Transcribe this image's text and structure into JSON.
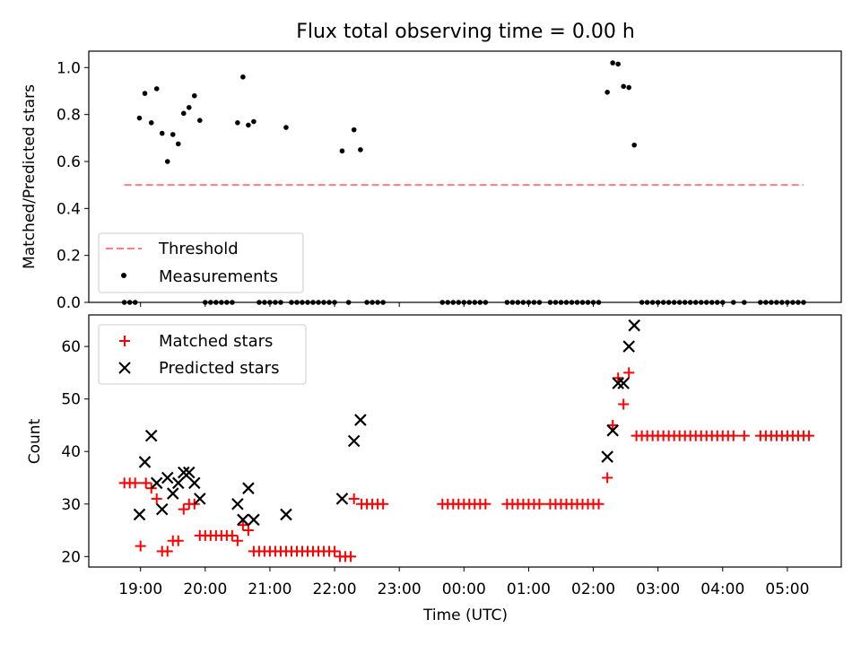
{
  "chart_data": [
    {
      "type": "scatter",
      "title": "Flux total observing time = 0.00 h",
      "xlabel": "",
      "ylabel": "Matched/Predicted stars",
      "ylim": [
        0,
        1.07
      ],
      "xlim": [
        "18:12",
        "05:50"
      ],
      "yticks": [
        "0.0",
        "0.2",
        "0.4",
        "0.6",
        "0.8",
        "1.0"
      ],
      "legend_placement": "lower-left",
      "threshold": {
        "name": "Threshold",
        "value": 0.5,
        "x_range": [
          "18:45",
          "05:15"
        ],
        "color": "#ff7f7f"
      },
      "series": [
        {
          "name": "Measurements",
          "color": "#000000",
          "points": [
            [
              "18:45",
              0
            ],
            [
              "18:50",
              0
            ],
            [
              "18:55",
              0
            ],
            [
              "18:59",
              0.785
            ],
            [
              "19:04",
              0.89
            ],
            [
              "19:10",
              0.765
            ],
            [
              "19:15",
              0.91
            ],
            [
              "19:20",
              0.72
            ],
            [
              "19:25",
              0.6
            ],
            [
              "19:30",
              0.715
            ],
            [
              "19:35",
              0.675
            ],
            [
              "19:40",
              0.805
            ],
            [
              "19:45",
              0.83
            ],
            [
              "19:50",
              0.88
            ],
            [
              "19:55",
              0.775
            ],
            [
              "20:00",
              0
            ],
            [
              "20:05",
              0
            ],
            [
              "20:10",
              0
            ],
            [
              "20:15",
              0
            ],
            [
              "20:20",
              0
            ],
            [
              "20:25",
              0
            ],
            [
              "20:30",
              0.765
            ],
            [
              "20:35",
              0.96
            ],
            [
              "20:40",
              0.755
            ],
            [
              "20:45",
              0.77
            ],
            [
              "20:50",
              0
            ],
            [
              "20:55",
              0
            ],
            [
              "21:00",
              0
            ],
            [
              "21:05",
              0
            ],
            [
              "21:10",
              0
            ],
            [
              "21:15",
              0.745
            ],
            [
              "21:20",
              0
            ],
            [
              "21:25",
              0
            ],
            [
              "21:30",
              0
            ],
            [
              "21:35",
              0
            ],
            [
              "21:40",
              0
            ],
            [
              "21:45",
              0
            ],
            [
              "21:50",
              0
            ],
            [
              "21:55",
              0
            ],
            [
              "22:00",
              0
            ],
            [
              "22:07",
              0.645
            ],
            [
              "22:18",
              0.735
            ],
            [
              "22:24",
              0.65
            ],
            [
              "22:13",
              0
            ],
            [
              "22:30",
              0
            ],
            [
              "22:35",
              0
            ],
            [
              "22:40",
              0
            ],
            [
              "22:45",
              0
            ],
            [
              "23:40",
              0
            ],
            [
              "23:45",
              0
            ],
            [
              "23:50",
              0
            ],
            [
              "23:55",
              0
            ],
            [
              "00:00",
              0
            ],
            [
              "00:05",
              0
            ],
            [
              "00:10",
              0
            ],
            [
              "00:15",
              0
            ],
            [
              "00:20",
              0
            ],
            [
              "00:40",
              0
            ],
            [
              "00:45",
              0
            ],
            [
              "00:50",
              0
            ],
            [
              "00:55",
              0
            ],
            [
              "01:00",
              0
            ],
            [
              "01:05",
              0
            ],
            [
              "01:10",
              0
            ],
            [
              "01:20",
              0
            ],
            [
              "01:25",
              0
            ],
            [
              "01:30",
              0
            ],
            [
              "01:35",
              0
            ],
            [
              "01:40",
              0
            ],
            [
              "01:45",
              0
            ],
            [
              "01:50",
              0
            ],
            [
              "01:55",
              0
            ],
            [
              "02:00",
              0
            ],
            [
              "02:05",
              0
            ],
            [
              "02:13",
              0.895
            ],
            [
              "02:18",
              1.02
            ],
            [
              "02:23",
              1.015
            ],
            [
              "02:28",
              0.92
            ],
            [
              "02:33",
              0.915
            ],
            [
              "02:38",
              0.67
            ],
            [
              "02:45",
              0
            ],
            [
              "02:50",
              0
            ],
            [
              "02:55",
              0
            ],
            [
              "03:00",
              0
            ],
            [
              "03:05",
              0
            ],
            [
              "03:10",
              0
            ],
            [
              "03:15",
              0
            ],
            [
              "03:20",
              0
            ],
            [
              "03:25",
              0
            ],
            [
              "03:30",
              0
            ],
            [
              "03:35",
              0
            ],
            [
              "03:40",
              0
            ],
            [
              "03:45",
              0
            ],
            [
              "03:50",
              0
            ],
            [
              "03:55",
              0
            ],
            [
              "04:00",
              0
            ],
            [
              "04:10",
              0
            ],
            [
              "04:20",
              0
            ],
            [
              "04:35",
              0
            ],
            [
              "04:40",
              0
            ],
            [
              "04:45",
              0
            ],
            [
              "04:50",
              0
            ],
            [
              "04:55",
              0
            ],
            [
              "05:00",
              0
            ],
            [
              "05:05",
              0
            ],
            [
              "05:10",
              0
            ],
            [
              "05:15",
              0
            ]
          ]
        }
      ]
    },
    {
      "type": "scatter",
      "title": "",
      "xlabel": "Time (UTC)",
      "ylabel": "Count",
      "ylim": [
        18,
        66
      ],
      "xlim": [
        "18:12",
        "05:50"
      ],
      "yticks": [
        "20",
        "30",
        "40",
        "50",
        "60"
      ],
      "xticks": [
        "19:00",
        "20:00",
        "21:00",
        "22:00",
        "23:00",
        "00:00",
        "01:00",
        "02:00",
        "03:00",
        "04:00",
        "05:00"
      ],
      "legend_placement": "upper-left",
      "series": [
        {
          "name": "Matched stars",
          "color": "#ff0000",
          "marker": "plus",
          "points": [
            [
              "18:45",
              34
            ],
            [
              "18:50",
              34
            ],
            [
              "18:55",
              34
            ],
            [
              "19:00",
              22
            ],
            [
              "19:05",
              34
            ],
            [
              "19:10",
              33
            ],
            [
              "19:15",
              31
            ],
            [
              "19:20",
              21
            ],
            [
              "19:25",
              21
            ],
            [
              "19:30",
              23
            ],
            [
              "19:35",
              23
            ],
            [
              "19:40",
              29
            ],
            [
              "19:45",
              30
            ],
            [
              "19:50",
              30
            ],
            [
              "19:55",
              24
            ],
            [
              "20:00",
              24
            ],
            [
              "20:05",
              24
            ],
            [
              "20:10",
              24
            ],
            [
              "20:15",
              24
            ],
            [
              "20:20",
              24
            ],
            [
              "20:25",
              24
            ],
            [
              "20:30",
              23
            ],
            [
              "20:35",
              26
            ],
            [
              "20:40",
              25
            ],
            [
              "20:45",
              21
            ],
            [
              "20:50",
              21
            ],
            [
              "20:55",
              21
            ],
            [
              "21:00",
              21
            ],
            [
              "21:05",
              21
            ],
            [
              "21:10",
              21
            ],
            [
              "21:15",
              21
            ],
            [
              "21:20",
              21
            ],
            [
              "21:25",
              21
            ],
            [
              "21:30",
              21
            ],
            [
              "21:35",
              21
            ],
            [
              "21:40",
              21
            ],
            [
              "21:45",
              21
            ],
            [
              "21:50",
              21
            ],
            [
              "21:55",
              21
            ],
            [
              "22:00",
              21
            ],
            [
              "22:05",
              20
            ],
            [
              "22:10",
              20
            ],
            [
              "22:15",
              20
            ],
            [
              "22:18",
              31
            ],
            [
              "22:25",
              30
            ],
            [
              "22:30",
              30
            ],
            [
              "22:35",
              30
            ],
            [
              "22:40",
              30
            ],
            [
              "22:45",
              30
            ],
            [
              "23:40",
              30
            ],
            [
              "23:45",
              30
            ],
            [
              "23:50",
              30
            ],
            [
              "23:55",
              30
            ],
            [
              "00:00",
              30
            ],
            [
              "00:05",
              30
            ],
            [
              "00:10",
              30
            ],
            [
              "00:15",
              30
            ],
            [
              "00:20",
              30
            ],
            [
              "00:40",
              30
            ],
            [
              "00:45",
              30
            ],
            [
              "00:50",
              30
            ],
            [
              "00:55",
              30
            ],
            [
              "01:00",
              30
            ],
            [
              "01:05",
              30
            ],
            [
              "01:10",
              30
            ],
            [
              "01:20",
              30
            ],
            [
              "01:25",
              30
            ],
            [
              "01:30",
              30
            ],
            [
              "01:35",
              30
            ],
            [
              "01:40",
              30
            ],
            [
              "01:45",
              30
            ],
            [
              "01:50",
              30
            ],
            [
              "01:55",
              30
            ],
            [
              "02:00",
              30
            ],
            [
              "02:05",
              30
            ],
            [
              "02:13",
              35
            ],
            [
              "02:18",
              45
            ],
            [
              "02:23",
              54
            ],
            [
              "02:28",
              49
            ],
            [
              "02:33",
              55
            ],
            [
              "02:40",
              43
            ],
            [
              "02:45",
              43
            ],
            [
              "02:50",
              43
            ],
            [
              "02:55",
              43
            ],
            [
              "03:00",
              43
            ],
            [
              "03:05",
              43
            ],
            [
              "03:10",
              43
            ],
            [
              "03:15",
              43
            ],
            [
              "03:20",
              43
            ],
            [
              "03:25",
              43
            ],
            [
              "03:30",
              43
            ],
            [
              "03:35",
              43
            ],
            [
              "03:40",
              43
            ],
            [
              "03:45",
              43
            ],
            [
              "03:50",
              43
            ],
            [
              "03:55",
              43
            ],
            [
              "04:00",
              43
            ],
            [
              "04:05",
              43
            ],
            [
              "04:10",
              43
            ],
            [
              "04:20",
              43
            ],
            [
              "04:35",
              43
            ],
            [
              "04:40",
              43
            ],
            [
              "04:45",
              43
            ],
            [
              "04:50",
              43
            ],
            [
              "04:55",
              43
            ],
            [
              "05:00",
              43
            ],
            [
              "05:05",
              43
            ],
            [
              "05:10",
              43
            ],
            [
              "05:15",
              43
            ],
            [
              "05:20",
              43
            ]
          ]
        },
        {
          "name": "Predicted stars",
          "color": "#000000",
          "marker": "x",
          "points": [
            [
              "18:59",
              28
            ],
            [
              "19:04",
              38
            ],
            [
              "19:10",
              43
            ],
            [
              "19:15",
              34
            ],
            [
              "19:20",
              29
            ],
            [
              "19:25",
              35
            ],
            [
              "19:30",
              32
            ],
            [
              "19:35",
              34
            ],
            [
              "19:40",
              36
            ],
            [
              "19:45",
              36
            ],
            [
              "19:50",
              34
            ],
            [
              "19:55",
              31
            ],
            [
              "20:30",
              30
            ],
            [
              "20:35",
              27
            ],
            [
              "20:40",
              33
            ],
            [
              "20:45",
              27
            ],
            [
              "21:15",
              28
            ],
            [
              "22:07",
              31
            ],
            [
              "22:18",
              42
            ],
            [
              "22:24",
              46
            ],
            [
              "02:13",
              39
            ],
            [
              "02:18",
              44
            ],
            [
              "02:23",
              53
            ],
            [
              "02:28",
              53
            ],
            [
              "02:33",
              60
            ],
            [
              "02:38",
              64
            ]
          ]
        }
      ]
    }
  ]
}
